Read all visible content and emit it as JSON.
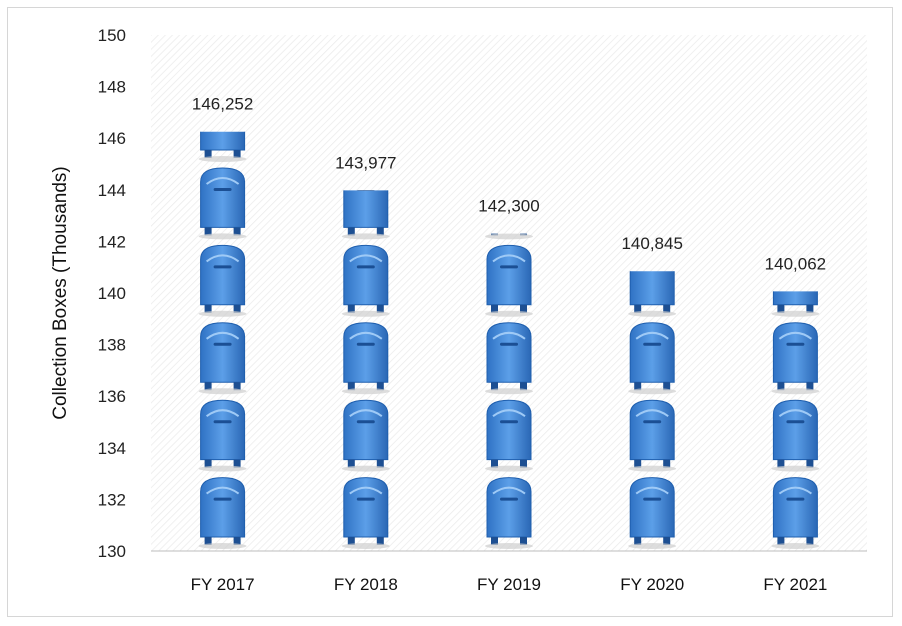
{
  "chart_data": {
    "type": "bar",
    "style": "pictograph",
    "icon": "mailbox-icon",
    "title": "",
    "xlabel": "",
    "ylabel": "Collection Boxes (Thousands)",
    "ylim": [
      130,
      150
    ],
    "yticks": [
      130,
      132,
      134,
      136,
      138,
      140,
      142,
      144,
      146,
      148,
      150
    ],
    "icon_step": 3,
    "categories": [
      "FY 2017",
      "FY 2018",
      "FY 2019",
      "FY 2020",
      "FY 2021"
    ],
    "values": [
      146.252,
      143.977,
      142.3,
      140.845,
      140.062
    ],
    "data_labels": [
      "146,252",
      "143,977",
      "142,300",
      "140,845",
      "140,062"
    ],
    "colors": {
      "icon_light": "#6aaaf0",
      "icon_mid": "#3f86d8",
      "icon_dark": "#1e5fae",
      "shadow": "#c4c4c4"
    }
  }
}
